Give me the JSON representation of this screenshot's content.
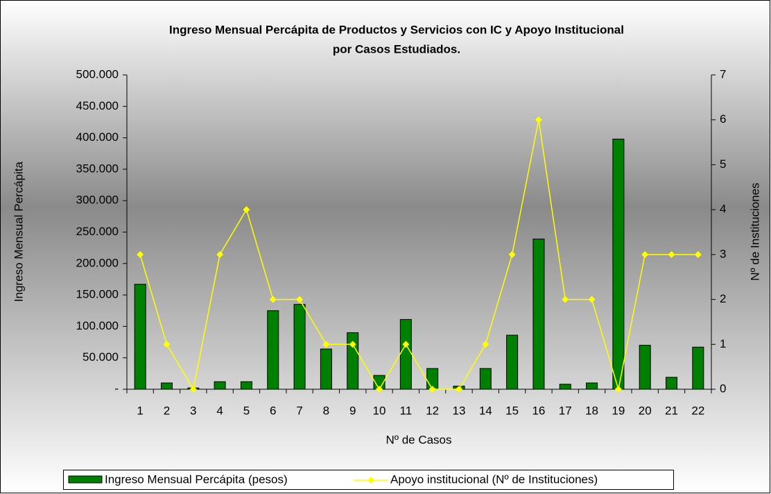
{
  "chart_data": {
    "type": "bar-line",
    "title": [
      "Ingreso Mensual Percápita de Productos y Servicios con IC y Apoyo Institucional",
      "por Casos Estudiados."
    ],
    "x_label": "Nº de Casos",
    "y_label": "Ingreso Mensual Percápita",
    "y2_label": "Nº de Instituciones",
    "categories": [
      "1",
      "2",
      "3",
      "4",
      "5",
      "6",
      "7",
      "8",
      "9",
      "10",
      "11",
      "12",
      "13",
      "14",
      "15",
      "16",
      "17",
      "18",
      "19",
      "20",
      "21",
      "22"
    ],
    "series": [
      {
        "name": "Ingreso Mensual Percápita (pesos)",
        "type": "bar",
        "color": "#008000",
        "values": [
          167000,
          10000,
          2000,
          12000,
          12000,
          125000,
          135000,
          64000,
          90000,
          22000,
          111000,
          33000,
          5000,
          33000,
          86000,
          239000,
          8000,
          10000,
          398000,
          70000,
          19000,
          67000
        ]
      },
      {
        "name": "Apoyo institucional (Nº de Instituciones)",
        "type": "line",
        "axis": "y2",
        "color": "#ffff00",
        "values": [
          3,
          1,
          0,
          3,
          4,
          2,
          2,
          1,
          1,
          0,
          1,
          0,
          0,
          1,
          3,
          6,
          2,
          2,
          0,
          3,
          3,
          3
        ]
      }
    ],
    "ylim": [
      0,
      500000
    ],
    "yticks": [
      {
        "value": 0,
        "label": "-"
      },
      {
        "value": 50000,
        "label": "50.000"
      },
      {
        "value": 100000,
        "label": "100.000"
      },
      {
        "value": 150000,
        "label": "150.000"
      },
      {
        "value": 200000,
        "label": "200.000"
      },
      {
        "value": 250000,
        "label": "250.000"
      },
      {
        "value": 300000,
        "label": "300.000"
      },
      {
        "value": 350000,
        "label": "350.000"
      },
      {
        "value": 400000,
        "label": "400.000"
      },
      {
        "value": 450000,
        "label": "450.000"
      },
      {
        "value": 500000,
        "label": "500.000"
      }
    ],
    "y2lim": [
      0,
      7
    ],
    "y2ticks": [
      0,
      1,
      2,
      3,
      4,
      5,
      6,
      7
    ],
    "legend": "bottom"
  }
}
